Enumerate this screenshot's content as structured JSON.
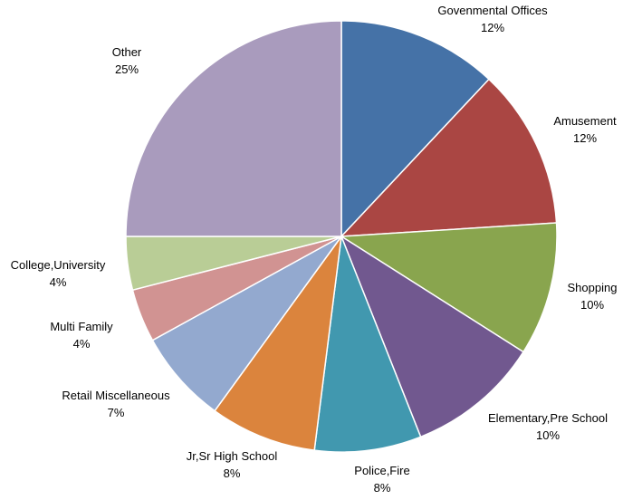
{
  "chart_data": {
    "type": "pie",
    "title": "",
    "start_angle": "12 o'clock, clockwise",
    "slices": [
      {
        "label": "Govenmental Offices",
        "value": 12,
        "display": "12%",
        "color": "#4572A7"
      },
      {
        "label": "Amusement",
        "value": 12,
        "display": "12%",
        "color": "#AA4643"
      },
      {
        "label": "Shopping",
        "value": 10,
        "display": "10%",
        "color": "#89A54E"
      },
      {
        "label": "Elementary,Pre School",
        "value": 10,
        "display": "10%",
        "color": "#71588F"
      },
      {
        "label": "Police,Fire",
        "value": 8,
        "display": "8%",
        "color": "#4198AF"
      },
      {
        "label": "Jr,Sr High School",
        "value": 8,
        "display": "8%",
        "color": "#DB843D"
      },
      {
        "label": "Retail Miscellaneous",
        "value": 7,
        "display": "7%",
        "color": "#93A9CF"
      },
      {
        "label": "Multi Family",
        "value": 4,
        "display": "4%",
        "color": "#D19392"
      },
      {
        "label": "College,University",
        "value": 4,
        "display": "4%",
        "color": "#B9CD96"
      },
      {
        "label": "Other",
        "value": 25,
        "display": "25%",
        "color": "#A99BBD"
      }
    ],
    "legend": "none"
  }
}
